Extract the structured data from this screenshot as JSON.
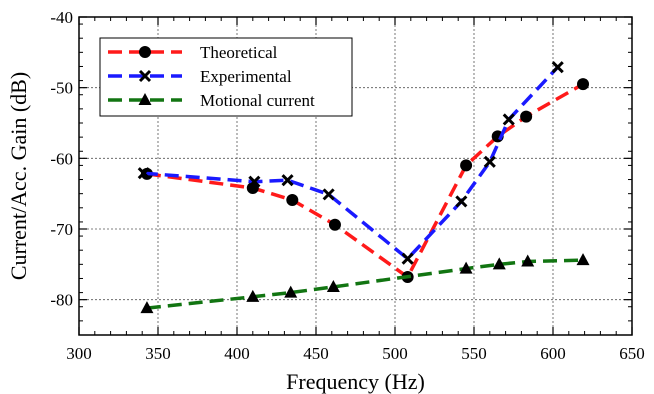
{
  "chart_data": {
    "type": "line",
    "xlabel": "Frequency (Hz)",
    "ylabel": "Current/Acc. Gain (dB)",
    "xlim": [
      300,
      650
    ],
    "ylim": [
      -85,
      -40
    ],
    "xticks": [
      300,
      350,
      400,
      450,
      500,
      550,
      600,
      650
    ],
    "yticks": [
      -80,
      -70,
      -60,
      -50,
      -40
    ],
    "grid": true,
    "legend_position": "top-left",
    "series": [
      {
        "name": "Theoretical",
        "color": "#ff1a1a",
        "marker": "circle",
        "points": [
          [
            343,
            -62.2
          ],
          [
            410,
            -64.2
          ],
          [
            435,
            -65.9
          ],
          [
            462,
            -69.4
          ],
          [
            508,
            -76.8
          ],
          [
            545,
            -61.0
          ],
          [
            565,
            -56.9
          ],
          [
            583,
            -54.1
          ],
          [
            619,
            -49.5
          ]
        ]
      },
      {
        "name": "Experimental",
        "color": "#1a1aff",
        "marker": "x",
        "points": [
          [
            341,
            -62.1
          ],
          [
            411,
            -63.3
          ],
          [
            432,
            -63.1
          ],
          [
            458,
            -65.1
          ],
          [
            508,
            -74.2
          ],
          [
            542,
            -66.1
          ],
          [
            560,
            -60.5
          ],
          [
            572,
            -54.5
          ],
          [
            603,
            -47.1
          ]
        ]
      },
      {
        "name": "Motional current",
        "color": "#127512",
        "marker": "triangle",
        "points": [
          [
            343,
            -81.2
          ],
          [
            410,
            -79.6
          ],
          [
            434,
            -79.0
          ],
          [
            461,
            -78.2
          ],
          [
            545,
            -75.6
          ],
          [
            566,
            -75.0
          ],
          [
            584,
            -74.6
          ],
          [
            619,
            -74.4
          ]
        ]
      }
    ]
  }
}
